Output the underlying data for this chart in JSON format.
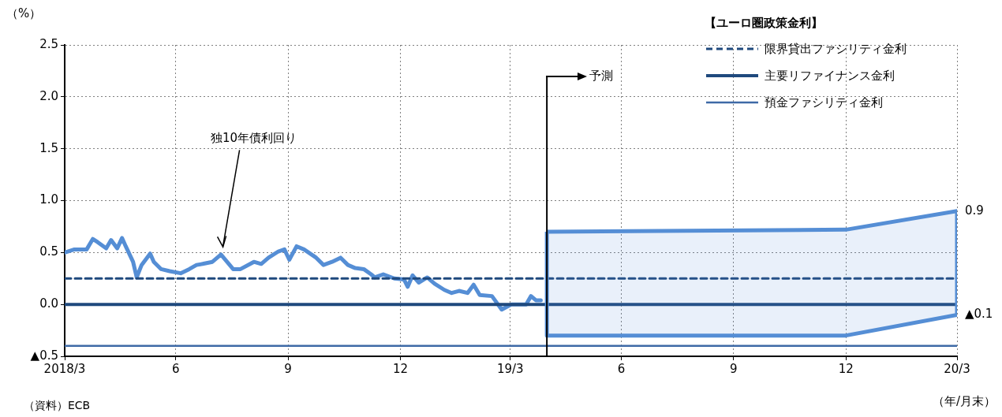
{
  "chart_data": {
    "type": "line",
    "xlabel": "（年/月末）",
    "ylabel": "（%）",
    "legend_title": "【ユーロ圏政策金利】",
    "xlim": [
      "2018-03-31",
      "2020-03-31"
    ],
    "xticks": [
      {
        "value": "2018-03-31",
        "label": "2018/3"
      },
      {
        "value": "2018-06-30",
        "label": "6"
      },
      {
        "value": "2018-09-30",
        "label": "9"
      },
      {
        "value": "2018-12-31",
        "label": "12"
      },
      {
        "value": "2019-03-31",
        "label": "19/3"
      },
      {
        "value": "2019-06-30",
        "label": "6"
      },
      {
        "value": "2019-09-30",
        "label": "9"
      },
      {
        "value": "2019-12-31",
        "label": "12"
      },
      {
        "value": "2020-03-31",
        "label": "20/3"
      }
    ],
    "ylim": [
      -0.5,
      2.5
    ],
    "yticks": [
      {
        "value": -0.5,
        "label": "▲0.5"
      },
      {
        "value": 0,
        "label": "0.0"
      },
      {
        "value": 0.5,
        "label": "0.5"
      },
      {
        "value": 1,
        "label": "1.0"
      },
      {
        "value": 1.5,
        "label": "1.5"
      },
      {
        "value": 2,
        "label": "2.0"
      },
      {
        "value": 2.5,
        "label": "2.5"
      }
    ],
    "grid": true,
    "legend": "top right",
    "marker": "none",
    "series": [
      {
        "color": "#558ed5",
        "line_style": "solid",
        "x": [
          "2018-03-31",
          "2018-04-08",
          "2018-04-18",
          "2018-04-23",
          "2018-04-27",
          "2018-05-04",
          "2018-05-08",
          "2018-05-13",
          "2018-05-17",
          "2018-05-20",
          "2018-05-26",
          "2018-05-29",
          "2018-06-02",
          "2018-06-09",
          "2018-06-12",
          "2018-06-18",
          "2018-06-25",
          "2018-07-04",
          "2018-07-11",
          "2018-07-17",
          "2018-07-22",
          "2018-07-30",
          "2018-08-06",
          "2018-08-11",
          "2018-08-16",
          "2018-08-22",
          "2018-09-02",
          "2018-09-08",
          "2018-09-14",
          "2018-09-22",
          "2018-09-27",
          "2018-10-01",
          "2018-10-07",
          "2018-10-13",
          "2018-10-23",
          "2018-10-29",
          "2018-11-05",
          "2018-11-12",
          "2018-11-18",
          "2018-11-24",
          "2018-12-01",
          "2018-12-07",
          "2018-12-10",
          "2018-12-17",
          "2018-12-26",
          "2019-01-03",
          "2019-01-06",
          "2019-01-10",
          "2019-01-15",
          "2019-01-22",
          "2019-01-28",
          "2019-02-05",
          "2019-02-11",
          "2019-02-17",
          "2019-02-24",
          "2019-03-01",
          "2019-03-06",
          "2019-03-16",
          "2019-03-24",
          "2019-04-01",
          "2019-04-08",
          "2019-04-13",
          "2019-04-17",
          "2019-04-21",
          "2019-04-25"
        ],
        "values": [
          0.5,
          0.53,
          0.53,
          0.63,
          0.6,
          0.54,
          0.62,
          0.54,
          0.64,
          0.56,
          0.41,
          0.26,
          0.38,
          0.49,
          0.41,
          0.34,
          0.32,
          0.3,
          0.34,
          0.38,
          0.39,
          0.41,
          0.48,
          0.41,
          0.34,
          0.34,
          0.41,
          0.39,
          0.45,
          0.51,
          0.53,
          0.43,
          0.56,
          0.53,
          0.45,
          0.38,
          0.41,
          0.45,
          0.38,
          0.35,
          0.34,
          0.29,
          0.26,
          0.29,
          0.25,
          0.24,
          0.17,
          0.28,
          0.21,
          0.26,
          0.2,
          0.14,
          0.11,
          0.13,
          0.11,
          0.19,
          0.09,
          0.08,
          -0.05,
          0,
          0,
          0,
          0.08,
          0.04,
          0.04
        ]
      },
      {
        "name": "限界貸出ファシリティ金利",
        "color": "#1f497d",
        "line_style": "dashed",
        "x": [
          "2018-03-31",
          "2020-03-31"
        ],
        "values": [
          0.25,
          0.25
        ]
      },
      {
        "name": "主要リファイナンス金利",
        "color": "#1f497d",
        "line_style": "solid",
        "x": [
          "2018-03-31",
          "2020-03-31"
        ],
        "values": [
          0,
          0
        ]
      },
      {
        "name": "預金ファシリティ金利",
        "color": "#3e6aa6",
        "line_style": "solid",
        "x": [
          "2018-03-31",
          "2020-03-31"
        ],
        "values": [
          -0.4,
          -0.4
        ]
      },
      {
        "type": "area",
        "color": "#558ed5",
        "x": [
          "2019-04-30",
          "2019-12-31",
          "2020-03-31"
        ],
        "values": [
          null,
          null,
          null
        ],
        "lower": [
          -0.3,
          -0.3,
          -0.1
        ],
        "upper": [
          0.7,
          0.72,
          0.9
        ]
      }
    ],
    "ref_lines": [
      {
        "axis": "x",
        "value": "2019-04-30",
        "label": "予測",
        "color": "#000000"
      }
    ],
    "annotations": [
      {
        "text": "独10年債利回り",
        "x": "2018-08-07",
        "y": 0.53
      },
      {
        "text": "0.9",
        "x": "2020-03-31",
        "y": 0.9
      },
      {
        "text": "▲0.1",
        "x": "2020-03-31",
        "y": -0.1
      },
      "（資料）ECB"
    ]
  }
}
